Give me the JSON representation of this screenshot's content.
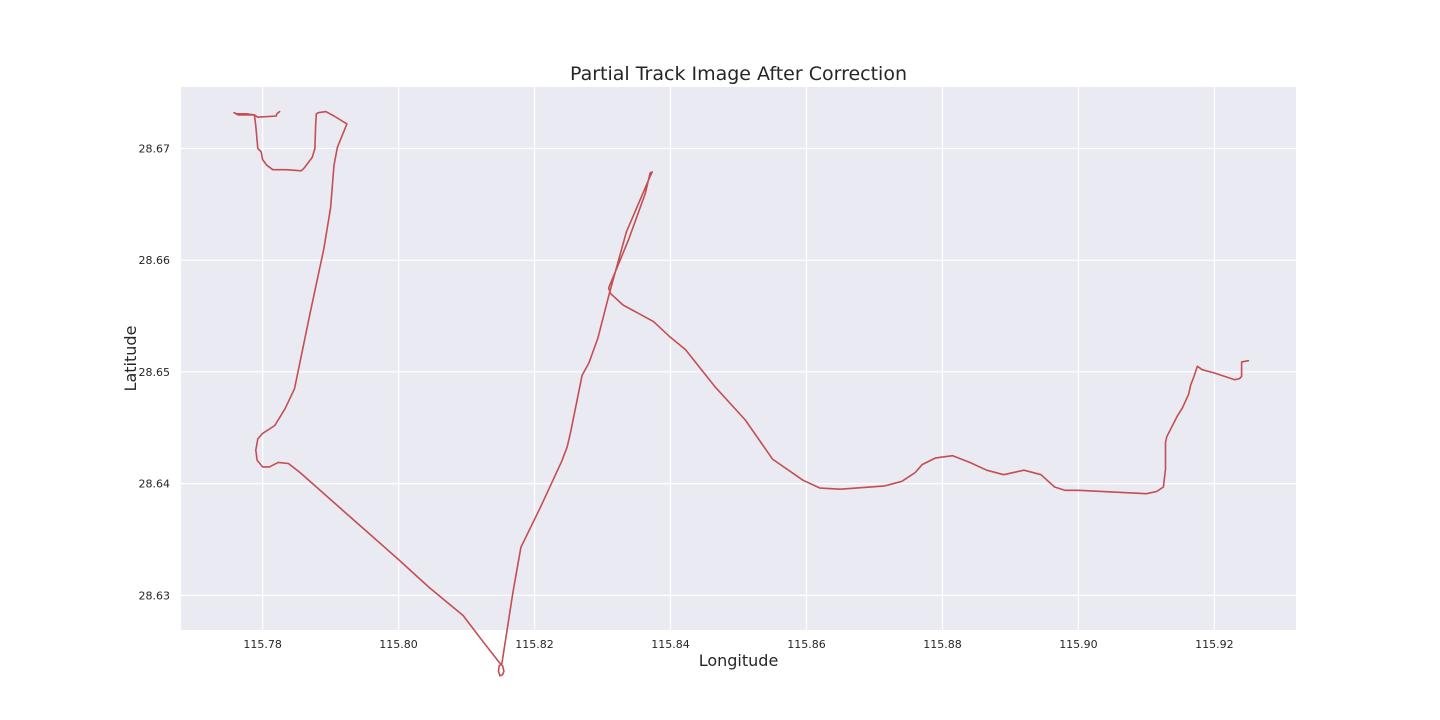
{
  "chart_data": {
    "type": "line",
    "title": "Partial Track Image After Correction",
    "xlabel": "Longitude",
    "ylabel": "Latitude",
    "xlim": [
      115.768,
      115.932
    ],
    "ylim": [
      28.6269,
      28.6755
    ],
    "xticks": [
      115.78,
      115.8,
      115.82,
      115.84,
      115.86,
      115.88,
      115.9,
      115.92
    ],
    "xtick_labels": [
      "115.78",
      "115.80",
      "115.82",
      "115.84",
      "115.86",
      "115.88",
      "115.90",
      "115.92"
    ],
    "yticks": [
      28.63,
      28.64,
      28.65,
      28.66,
      28.67
    ],
    "ytick_labels": [
      "28.63",
      "28.64",
      "28.65",
      "28.66",
      "28.67"
    ],
    "grid": true,
    "background_color": "#EAEAF2",
    "grid_color": "#FFFFFF",
    "line_color": "#C44E52",
    "series": [
      {
        "points": [
          [
            115.7825,
            28.6733
          ],
          [
            115.7821,
            28.6731
          ],
          [
            115.782,
            28.6729
          ],
          [
            115.7793,
            28.6728
          ],
          [
            115.7788,
            28.673
          ],
          [
            115.7776,
            28.6731
          ],
          [
            115.7762,
            28.6731
          ],
          [
            115.7758,
            28.6732
          ],
          [
            115.7764,
            28.673
          ],
          [
            115.7788,
            28.673
          ],
          [
            115.779,
            28.672
          ],
          [
            115.7793,
            28.67
          ],
          [
            115.7798,
            28.6697
          ],
          [
            115.78,
            28.669
          ],
          [
            115.7806,
            28.6685
          ],
          [
            115.7815,
            28.6681
          ],
          [
            115.7835,
            28.6681
          ],
          [
            115.7857,
            28.668
          ],
          [
            115.7862,
            28.6683
          ],
          [
            115.7873,
            28.6692
          ],
          [
            115.7877,
            28.67
          ],
          [
            115.7878,
            28.672
          ],
          [
            115.7879,
            28.6731
          ],
          [
            115.7882,
            28.6732
          ],
          [
            115.7893,
            28.6733
          ],
          [
            115.7905,
            28.6729
          ],
          [
            115.7924,
            28.6722
          ],
          [
            115.791,
            28.6701
          ],
          [
            115.7905,
            28.6685
          ],
          [
            115.79,
            28.6647
          ],
          [
            115.789,
            28.661
          ],
          [
            115.787,
            28.6553
          ],
          [
            115.7847,
            28.6485
          ],
          [
            115.7833,
            28.6467
          ],
          [
            115.7818,
            28.6452
          ],
          [
            115.78,
            28.6445
          ],
          [
            115.7793,
            28.644
          ],
          [
            115.779,
            28.643
          ],
          [
            115.7792,
            28.6421
          ],
          [
            115.78,
            28.6415
          ],
          [
            115.781,
            28.6415
          ],
          [
            115.7823,
            28.6419
          ],
          [
            115.7838,
            28.6418
          ],
          [
            115.7855,
            28.641
          ],
          [
            115.792,
            28.6375
          ],
          [
            115.8,
            28.6332
          ],
          [
            115.8045,
            28.6307
          ],
          [
            115.8095,
            28.6282
          ],
          [
            115.812,
            28.6262
          ],
          [
            115.8148,
            28.624
          ],
          [
            115.8153,
            28.6237
          ],
          [
            115.8155,
            28.6232
          ],
          [
            115.8153,
            28.6229
          ],
          [
            115.8149,
            28.6228
          ],
          [
            115.8147,
            28.6232
          ],
          [
            115.8148,
            28.6237
          ],
          [
            115.8152,
            28.6239
          ],
          [
            115.8168,
            28.6302
          ],
          [
            115.818,
            28.6343
          ],
          [
            115.8208,
            28.6378
          ],
          [
            115.824,
            28.642
          ],
          [
            115.8248,
            28.6433
          ],
          [
            115.8253,
            28.6446
          ],
          [
            115.827,
            28.6497
          ],
          [
            115.828,
            28.6508
          ],
          [
            115.8293,
            28.653
          ],
          [
            115.831,
            28.657
          ],
          [
            115.8335,
            28.6625
          ],
          [
            115.837,
            28.6675
          ],
          [
            115.8373,
            28.6679
          ],
          [
            115.837,
            28.6678
          ],
          [
            115.8363,
            28.666
          ],
          [
            115.8338,
            28.6618
          ],
          [
            115.8309,
            28.6575
          ],
          [
            115.8312,
            28.657
          ],
          [
            115.833,
            28.656
          ],
          [
            115.8375,
            28.6545
          ],
          [
            115.8398,
            28.6532
          ],
          [
            115.8422,
            28.652
          ],
          [
            115.8465,
            28.6487
          ],
          [
            115.851,
            28.6457
          ],
          [
            115.855,
            28.6422
          ],
          [
            115.8595,
            28.6403
          ],
          [
            115.862,
            28.6396
          ],
          [
            115.865,
            28.6395
          ],
          [
            115.8715,
            28.6398
          ],
          [
            115.874,
            28.6402
          ],
          [
            115.876,
            28.641
          ],
          [
            115.877,
            28.6417
          ],
          [
            115.879,
            28.6423
          ],
          [
            115.8815,
            28.6425
          ],
          [
            115.884,
            28.6419
          ],
          [
            115.8865,
            28.6412
          ],
          [
            115.889,
            28.6408
          ],
          [
            115.892,
            28.6412
          ],
          [
            115.8945,
            28.6408
          ],
          [
            115.8965,
            28.6397
          ],
          [
            115.898,
            28.6394
          ],
          [
            115.9,
            28.6394
          ],
          [
            115.91,
            28.6391
          ],
          [
            115.9115,
            28.6393
          ],
          [
            115.9125,
            28.6397
          ],
          [
            115.9128,
            28.6413
          ],
          [
            115.9128,
            28.6437
          ],
          [
            115.913,
            28.6442
          ],
          [
            115.9145,
            28.646
          ],
          [
            115.9153,
            28.6468
          ],
          [
            115.9162,
            28.648
          ],
          [
            115.9165,
            28.6488
          ],
          [
            115.917,
            28.6496
          ],
          [
            115.9175,
            28.6505
          ],
          [
            115.9182,
            28.6502
          ],
          [
            115.92,
            28.6499
          ],
          [
            115.922,
            28.6495
          ],
          [
            115.923,
            28.6493
          ],
          [
            115.9237,
            28.6494
          ],
          [
            115.924,
            28.6496
          ],
          [
            115.924,
            28.6509
          ],
          [
            115.925,
            28.651
          ]
        ]
      }
    ]
  }
}
